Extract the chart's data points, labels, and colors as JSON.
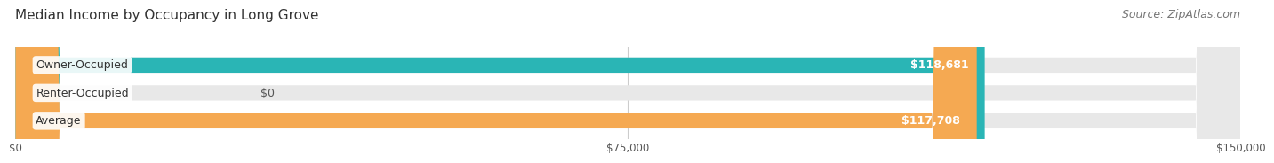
{
  "title": "Median Income by Occupancy in Long Grove",
  "source": "Source: ZipAtlas.com",
  "categories": [
    "Owner-Occupied",
    "Renter-Occupied",
    "Average"
  ],
  "values": [
    118681,
    0,
    117708
  ],
  "bar_colors": [
    "#2ab5b5",
    "#c4a8d4",
    "#f5a952"
  ],
  "value_labels": [
    "$118,681",
    "$0",
    "$117,708"
  ],
  "xlim": [
    0,
    150000
  ],
  "xticks": [
    0,
    75000,
    150000
  ],
  "xtick_labels": [
    "$0",
    "$75,000",
    "$150,000"
  ],
  "title_fontsize": 11,
  "source_fontsize": 9,
  "bar_label_fontsize": 9,
  "value_label_fontsize": 9,
  "background_color": "#ffffff",
  "bar_height": 0.55
}
